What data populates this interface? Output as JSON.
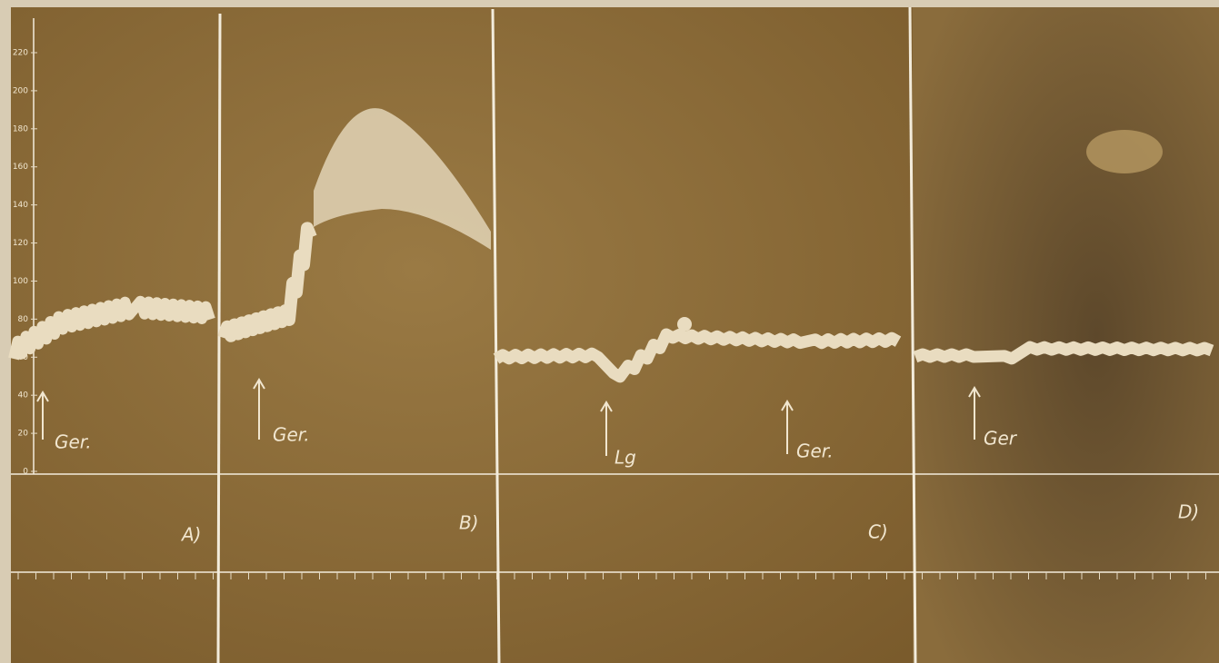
{
  "axis": {
    "ticks": [
      0,
      20,
      40,
      60,
      80,
      100,
      120,
      140,
      160,
      180,
      200,
      220
    ]
  },
  "panels": [
    {
      "label": "A)",
      "annotations": [
        "Ger."
      ]
    },
    {
      "label": "B)",
      "annotations": [
        "Ger."
      ]
    },
    {
      "label": "C)",
      "annotations": [
        "Lg",
        "Ger."
      ]
    },
    {
      "label": "D)",
      "annotations": [
        "Ger"
      ]
    }
  ]
}
